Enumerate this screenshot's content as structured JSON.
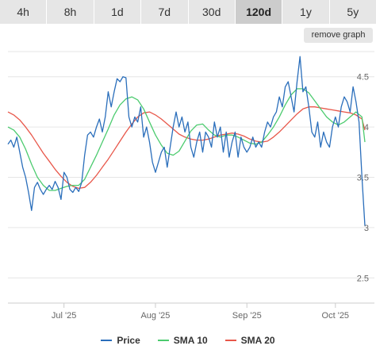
{
  "tabs": [
    {
      "label": "4h",
      "active": false
    },
    {
      "label": "8h",
      "active": false
    },
    {
      "label": "1d",
      "active": false
    },
    {
      "label": "7d",
      "active": false
    },
    {
      "label": "30d",
      "active": false
    },
    {
      "label": "120d",
      "active": true
    },
    {
      "label": "1y",
      "active": false
    },
    {
      "label": "5y",
      "active": false
    }
  ],
  "remove_graph_label": "remove graph",
  "chart_data": {
    "type": "line",
    "title": "",
    "xlabel": "",
    "ylabel": "",
    "x_start": "2025-06-12",
    "x_end": "2025-10-11",
    "x_ticks": [
      {
        "date": "2025-07-01",
        "label": "Jul '25"
      },
      {
        "date": "2025-08-01",
        "label": "Aug '25"
      },
      {
        "date": "2025-09-01",
        "label": "Sep '25"
      },
      {
        "date": "2025-10-01",
        "label": "Oct '25"
      }
    ],
    "ylim": [
      2.25,
      4.75
    ],
    "y_ticks": [
      2.5,
      3,
      3.5,
      4,
      4.5
    ],
    "grid": true,
    "legend_position": "bottom",
    "series": [
      {
        "name": "Price",
        "color": "#2a6ebb",
        "points": [
          [
            "2025-06-12",
            3.83
          ],
          [
            "2025-06-13",
            3.87
          ],
          [
            "2025-06-14",
            3.8
          ],
          [
            "2025-06-15",
            3.9
          ],
          [
            "2025-06-16",
            3.75
          ],
          [
            "2025-06-17",
            3.6
          ],
          [
            "2025-06-18",
            3.5
          ],
          [
            "2025-06-19",
            3.35
          ],
          [
            "2025-06-20",
            3.17
          ],
          [
            "2025-06-21",
            3.4
          ],
          [
            "2025-06-22",
            3.45
          ],
          [
            "2025-06-23",
            3.38
          ],
          [
            "2025-06-24",
            3.33
          ],
          [
            "2025-06-25",
            3.38
          ],
          [
            "2025-06-26",
            3.42
          ],
          [
            "2025-06-27",
            3.38
          ],
          [
            "2025-06-28",
            3.46
          ],
          [
            "2025-06-29",
            3.4
          ],
          [
            "2025-06-30",
            3.28
          ],
          [
            "2025-07-01",
            3.55
          ],
          [
            "2025-07-02",
            3.5
          ],
          [
            "2025-07-03",
            3.38
          ],
          [
            "2025-07-04",
            3.35
          ],
          [
            "2025-07-05",
            3.4
          ],
          [
            "2025-07-06",
            3.36
          ],
          [
            "2025-07-07",
            3.45
          ],
          [
            "2025-07-08",
            3.72
          ],
          [
            "2025-07-09",
            3.92
          ],
          [
            "2025-07-10",
            3.95
          ],
          [
            "2025-07-11",
            3.9
          ],
          [
            "2025-07-12",
            4.0
          ],
          [
            "2025-07-13",
            4.08
          ],
          [
            "2025-07-14",
            3.95
          ],
          [
            "2025-07-15",
            4.1
          ],
          [
            "2025-07-16",
            4.35
          ],
          [
            "2025-07-17",
            4.2
          ],
          [
            "2025-07-18",
            4.35
          ],
          [
            "2025-07-19",
            4.48
          ],
          [
            "2025-07-20",
            4.45
          ],
          [
            "2025-07-21",
            4.5
          ],
          [
            "2025-07-22",
            4.49
          ],
          [
            "2025-07-23",
            4.1
          ],
          [
            "2025-07-24",
            4.0
          ],
          [
            "2025-07-25",
            4.1
          ],
          [
            "2025-07-26",
            4.05
          ],
          [
            "2025-07-27",
            4.2
          ],
          [
            "2025-07-28",
            3.9
          ],
          [
            "2025-07-29",
            4.0
          ],
          [
            "2025-07-30",
            3.85
          ],
          [
            "2025-07-31",
            3.65
          ],
          [
            "2025-08-01",
            3.55
          ],
          [
            "2025-08-02",
            3.65
          ],
          [
            "2025-08-03",
            3.75
          ],
          [
            "2025-08-04",
            3.8
          ],
          [
            "2025-08-05",
            3.6
          ],
          [
            "2025-08-06",
            3.8
          ],
          [
            "2025-08-07",
            4.0
          ],
          [
            "2025-08-08",
            4.15
          ],
          [
            "2025-08-09",
            4.0
          ],
          [
            "2025-08-10",
            4.1
          ],
          [
            "2025-08-11",
            3.95
          ],
          [
            "2025-08-12",
            4.05
          ],
          [
            "2025-08-13",
            3.8
          ],
          [
            "2025-08-14",
            3.7
          ],
          [
            "2025-08-15",
            3.85
          ],
          [
            "2025-08-16",
            3.95
          ],
          [
            "2025-08-17",
            3.75
          ],
          [
            "2025-08-18",
            3.95
          ],
          [
            "2025-08-19",
            3.9
          ],
          [
            "2025-08-20",
            3.8
          ],
          [
            "2025-08-21",
            4.05
          ],
          [
            "2025-08-22",
            3.9
          ],
          [
            "2025-08-23",
            4.0
          ],
          [
            "2025-08-24",
            3.75
          ],
          [
            "2025-08-25",
            3.95
          ],
          [
            "2025-08-26",
            3.7
          ],
          [
            "2025-08-27",
            3.85
          ],
          [
            "2025-08-28",
            3.95
          ],
          [
            "2025-08-29",
            3.7
          ],
          [
            "2025-08-30",
            3.9
          ],
          [
            "2025-08-31",
            3.8
          ],
          [
            "2025-09-01",
            3.75
          ],
          [
            "2025-09-02",
            3.8
          ],
          [
            "2025-09-03",
            3.9
          ],
          [
            "2025-09-04",
            3.8
          ],
          [
            "2025-09-05",
            3.85
          ],
          [
            "2025-09-06",
            3.8
          ],
          [
            "2025-09-07",
            3.95
          ],
          [
            "2025-09-08",
            4.05
          ],
          [
            "2025-09-09",
            4.0
          ],
          [
            "2025-09-10",
            4.1
          ],
          [
            "2025-09-11",
            4.15
          ],
          [
            "2025-09-12",
            4.3
          ],
          [
            "2025-09-13",
            4.2
          ],
          [
            "2025-09-14",
            4.4
          ],
          [
            "2025-09-15",
            4.45
          ],
          [
            "2025-09-16",
            4.3
          ],
          [
            "2025-09-17",
            4.15
          ],
          [
            "2025-09-18",
            4.45
          ],
          [
            "2025-09-19",
            4.7
          ],
          [
            "2025-09-20",
            4.35
          ],
          [
            "2025-09-21",
            4.4
          ],
          [
            "2025-09-22",
            4.2
          ],
          [
            "2025-09-23",
            3.95
          ],
          [
            "2025-09-24",
            3.9
          ],
          [
            "2025-09-25",
            4.05
          ],
          [
            "2025-09-26",
            3.8
          ],
          [
            "2025-09-27",
            3.95
          ],
          [
            "2025-09-28",
            3.85
          ],
          [
            "2025-09-29",
            3.8
          ],
          [
            "2025-09-30",
            4.0
          ],
          [
            "2025-10-01",
            4.1
          ],
          [
            "2025-10-02",
            4.0
          ],
          [
            "2025-10-03",
            4.2
          ],
          [
            "2025-10-04",
            4.3
          ],
          [
            "2025-10-05",
            4.25
          ],
          [
            "2025-10-06",
            4.15
          ],
          [
            "2025-10-07",
            4.4
          ],
          [
            "2025-10-08",
            4.25
          ],
          [
            "2025-10-09",
            4.05
          ],
          [
            "2025-10-10",
            3.5
          ],
          [
            "2025-10-11",
            3.02
          ]
        ]
      },
      {
        "name": "SMA 10",
        "color": "#4ccb6f",
        "points": [
          [
            "2025-06-12",
            4.0
          ],
          [
            "2025-06-14",
            3.97
          ],
          [
            "2025-06-16",
            3.9
          ],
          [
            "2025-06-18",
            3.78
          ],
          [
            "2025-06-20",
            3.63
          ],
          [
            "2025-06-22",
            3.5
          ],
          [
            "2025-06-24",
            3.42
          ],
          [
            "2025-06-26",
            3.37
          ],
          [
            "2025-06-28",
            3.37
          ],
          [
            "2025-06-30",
            3.39
          ],
          [
            "2025-07-02",
            3.41
          ],
          [
            "2025-07-04",
            3.42
          ],
          [
            "2025-07-06",
            3.42
          ],
          [
            "2025-07-08",
            3.48
          ],
          [
            "2025-07-10",
            3.6
          ],
          [
            "2025-07-12",
            3.72
          ],
          [
            "2025-07-14",
            3.85
          ],
          [
            "2025-07-16",
            3.98
          ],
          [
            "2025-07-18",
            4.12
          ],
          [
            "2025-07-20",
            4.22
          ],
          [
            "2025-07-22",
            4.28
          ],
          [
            "2025-07-24",
            4.3
          ],
          [
            "2025-07-26",
            4.27
          ],
          [
            "2025-07-28",
            4.18
          ],
          [
            "2025-07-30",
            4.05
          ],
          [
            "2025-08-01",
            3.92
          ],
          [
            "2025-08-03",
            3.82
          ],
          [
            "2025-08-05",
            3.74
          ],
          [
            "2025-08-07",
            3.72
          ],
          [
            "2025-08-09",
            3.76
          ],
          [
            "2025-08-11",
            3.86
          ],
          [
            "2025-08-13",
            3.96
          ],
          [
            "2025-08-15",
            4.02
          ],
          [
            "2025-08-17",
            4.03
          ],
          [
            "2025-08-19",
            3.97
          ],
          [
            "2025-08-21",
            3.92
          ],
          [
            "2025-08-23",
            3.9
          ],
          [
            "2025-08-25",
            3.92
          ],
          [
            "2025-08-27",
            3.92
          ],
          [
            "2025-08-29",
            3.9
          ],
          [
            "2025-08-31",
            3.87
          ],
          [
            "2025-09-02",
            3.84
          ],
          [
            "2025-09-04",
            3.83
          ],
          [
            "2025-09-06",
            3.85
          ],
          [
            "2025-09-08",
            3.92
          ],
          [
            "2025-09-10",
            4.0
          ],
          [
            "2025-09-12",
            4.1
          ],
          [
            "2025-09-14",
            4.22
          ],
          [
            "2025-09-16",
            4.32
          ],
          [
            "2025-09-18",
            4.38
          ],
          [
            "2025-09-20",
            4.38
          ],
          [
            "2025-09-22",
            4.34
          ],
          [
            "2025-09-24",
            4.26
          ],
          [
            "2025-09-26",
            4.18
          ],
          [
            "2025-09-28",
            4.1
          ],
          [
            "2025-09-30",
            4.05
          ],
          [
            "2025-10-02",
            4.02
          ],
          [
            "2025-10-04",
            4.05
          ],
          [
            "2025-10-06",
            4.1
          ],
          [
            "2025-10-08",
            4.15
          ],
          [
            "2025-10-10",
            4.1
          ],
          [
            "2025-10-11",
            3.85
          ]
        ]
      },
      {
        "name": "SMA 20",
        "color": "#e8574a",
        "points": [
          [
            "2025-06-12",
            4.15
          ],
          [
            "2025-06-14",
            4.12
          ],
          [
            "2025-06-16",
            4.07
          ],
          [
            "2025-06-18",
            4.0
          ],
          [
            "2025-06-20",
            3.92
          ],
          [
            "2025-06-22",
            3.83
          ],
          [
            "2025-06-24",
            3.74
          ],
          [
            "2025-06-26",
            3.66
          ],
          [
            "2025-06-28",
            3.58
          ],
          [
            "2025-06-30",
            3.51
          ],
          [
            "2025-07-02",
            3.45
          ],
          [
            "2025-07-04",
            3.41
          ],
          [
            "2025-07-06",
            3.39
          ],
          [
            "2025-07-08",
            3.4
          ],
          [
            "2025-07-10",
            3.45
          ],
          [
            "2025-07-12",
            3.52
          ],
          [
            "2025-07-14",
            3.6
          ],
          [
            "2025-07-16",
            3.68
          ],
          [
            "2025-07-18",
            3.77
          ],
          [
            "2025-07-20",
            3.86
          ],
          [
            "2025-07-22",
            3.95
          ],
          [
            "2025-07-24",
            4.03
          ],
          [
            "2025-07-26",
            4.1
          ],
          [
            "2025-07-28",
            4.14
          ],
          [
            "2025-07-30",
            4.15
          ],
          [
            "2025-08-01",
            4.12
          ],
          [
            "2025-08-03",
            4.08
          ],
          [
            "2025-08-05",
            4.03
          ],
          [
            "2025-08-07",
            3.98
          ],
          [
            "2025-08-09",
            3.93
          ],
          [
            "2025-08-11",
            3.9
          ],
          [
            "2025-08-13",
            3.88
          ],
          [
            "2025-08-15",
            3.87
          ],
          [
            "2025-08-17",
            3.87
          ],
          [
            "2025-08-19",
            3.88
          ],
          [
            "2025-08-21",
            3.9
          ],
          [
            "2025-08-23",
            3.92
          ],
          [
            "2025-08-25",
            3.93
          ],
          [
            "2025-08-27",
            3.94
          ],
          [
            "2025-08-29",
            3.93
          ],
          [
            "2025-08-31",
            3.91
          ],
          [
            "2025-09-02",
            3.88
          ],
          [
            "2025-09-04",
            3.86
          ],
          [
            "2025-09-06",
            3.85
          ],
          [
            "2025-09-08",
            3.86
          ],
          [
            "2025-09-10",
            3.9
          ],
          [
            "2025-09-12",
            3.95
          ],
          [
            "2025-09-14",
            4.01
          ],
          [
            "2025-09-16",
            4.07
          ],
          [
            "2025-09-18",
            4.13
          ],
          [
            "2025-09-20",
            4.18
          ],
          [
            "2025-09-22",
            4.2
          ],
          [
            "2025-09-24",
            4.2
          ],
          [
            "2025-09-26",
            4.19
          ],
          [
            "2025-09-28",
            4.18
          ],
          [
            "2025-09-30",
            4.17
          ],
          [
            "2025-10-02",
            4.16
          ],
          [
            "2025-10-04",
            4.15
          ],
          [
            "2025-10-06",
            4.14
          ],
          [
            "2025-10-08",
            4.12
          ],
          [
            "2025-10-10",
            4.08
          ],
          [
            "2025-10-11",
            3.97
          ]
        ]
      }
    ]
  }
}
